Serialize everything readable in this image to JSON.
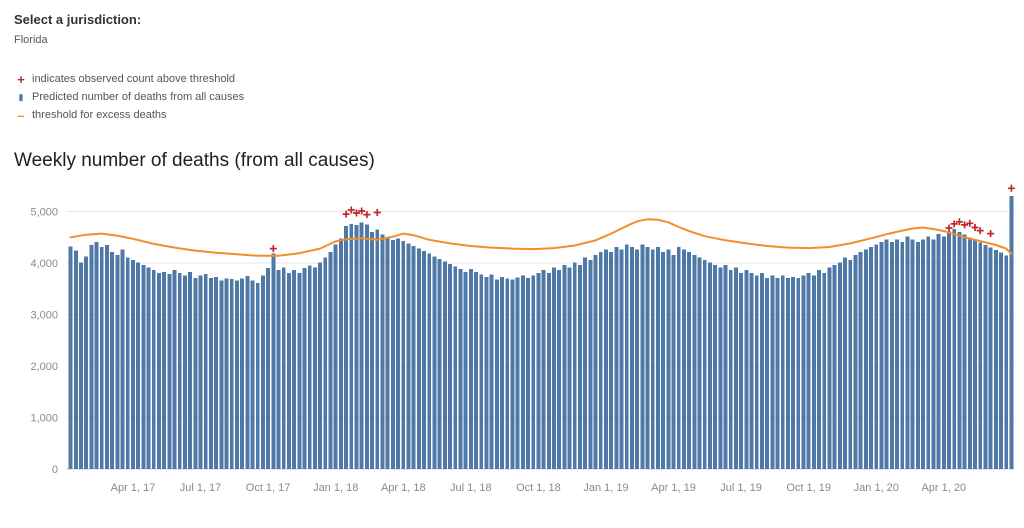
{
  "jurisdiction": {
    "label": "Select a jurisdiction:",
    "value": "Florida"
  },
  "legend": {
    "items": [
      {
        "glyph": "+",
        "color": "#c0282d",
        "text": "indicates observed count above threshold"
      },
      {
        "glyph": "▮",
        "color": "#4e79a7",
        "text": "Predicted number of deaths from all causes"
      },
      {
        "glyph": "–",
        "color": "#f28e2b",
        "text": "threshold for excess deaths"
      }
    ]
  },
  "chart_title": "Weekly number of deaths (from all causes)",
  "chart_data": {
    "type": "bar",
    "title": "Weekly number of deaths (from all causes)",
    "xlabel": "",
    "ylabel": "",
    "x_unit": "week (Jan 2017 - Jun 2020)",
    "ylim": [
      0,
      5500
    ],
    "y_ticks": [
      0,
      1000,
      2000,
      3000,
      4000,
      5000
    ],
    "y_tick_labels": [
      "0",
      "1,000",
      "2,000",
      "3,000",
      "4,000",
      "5,000"
    ],
    "x_tick_positions": [
      12,
      25,
      38,
      51,
      64,
      77,
      90,
      103,
      116,
      129,
      142,
      155,
      168
    ],
    "x_tick_labels": [
      "Apr 1, 17",
      "Jul 1, 17",
      "Oct 1, 17",
      "Jan 1, 18",
      "Apr 1, 18",
      "Jul 1, 18",
      "Oct 1, 18",
      "Jan 1, 19",
      "Apr 1, 19",
      "Jul 1, 19",
      "Oct 1, 19",
      "Jan 1, 20",
      "Apr 1, 20"
    ],
    "series": [
      {
        "name": "Predicted number of deaths from all causes",
        "values": [
          4320,
          4240,
          4010,
          4130,
          4350,
          4410,
          4310,
          4350,
          4210,
          4160,
          4260,
          4110,
          4060,
          4010,
          3960,
          3910,
          3860,
          3810,
          3830,
          3790,
          3860,
          3810,
          3760,
          3830,
          3710,
          3760,
          3790,
          3710,
          3730,
          3660,
          3700,
          3690,
          3660,
          3700,
          3750,
          3660,
          3610,
          3760,
          3900,
          4180,
          3860,
          3910,
          3810,
          3860,
          3810,
          3900,
          3950,
          3910,
          4010,
          4110,
          4210,
          4360,
          4480,
          4720,
          4760,
          4740,
          4790,
          4750,
          4600,
          4650,
          4550,
          4500,
          4450,
          4480,
          4430,
          4380,
          4330,
          4280,
          4230,
          4180,
          4130,
          4080,
          4030,
          3980,
          3930,
          3880,
          3830,
          3880,
          3830,
          3780,
          3730,
          3780,
          3680,
          3730,
          3700,
          3680,
          3720,
          3760,
          3710,
          3760,
          3810,
          3860,
          3810,
          3910,
          3860,
          3960,
          3910,
          4010,
          3960,
          4110,
          4060,
          4160,
          4210,
          4260,
          4210,
          4310,
          4260,
          4360,
          4310,
          4260,
          4360,
          4310,
          4260,
          4310,
          4210,
          4260,
          4160,
          4310,
          4260,
          4210,
          4160,
          4110,
          4060,
          4010,
          3960,
          3910,
          3960,
          3860,
          3910,
          3810,
          3860,
          3810,
          3760,
          3810,
          3710,
          3760,
          3710,
          3760,
          3710,
          3730,
          3710,
          3760,
          3810,
          3760,
          3860,
          3810,
          3910,
          3960,
          4010,
          4110,
          4060,
          4160,
          4210,
          4260,
          4310,
          4360,
          4410,
          4460,
          4410,
          4460,
          4410,
          4510,
          4460,
          4410,
          4460,
          4510,
          4460,
          4560,
          4510,
          4610,
          4660,
          4600,
          4550,
          4500,
          4450,
          4400,
          4350,
          4300,
          4250,
          4200,
          4150,
          5300
        ]
      }
    ],
    "overlay_line": {
      "name": "threshold for excess deaths",
      "points": [
        [
          0,
          4500
        ],
        [
          3,
          4550
        ],
        [
          6,
          4570
        ],
        [
          9,
          4530
        ],
        [
          12,
          4470
        ],
        [
          16,
          4370
        ],
        [
          20,
          4300
        ],
        [
          24,
          4240
        ],
        [
          28,
          4200
        ],
        [
          32,
          4170
        ],
        [
          36,
          4140
        ],
        [
          40,
          4140
        ],
        [
          44,
          4190
        ],
        [
          48,
          4280
        ],
        [
          51,
          4420
        ],
        [
          53,
          4460
        ],
        [
          56,
          4480
        ],
        [
          59,
          4450
        ],
        [
          62,
          4510
        ],
        [
          64,
          4570
        ],
        [
          66,
          4540
        ],
        [
          69,
          4450
        ],
        [
          73,
          4380
        ],
        [
          77,
          4330
        ],
        [
          81,
          4300
        ],
        [
          85,
          4280
        ],
        [
          89,
          4270
        ],
        [
          93,
          4290
        ],
        [
          97,
          4340
        ],
        [
          101,
          4440
        ],
        [
          104,
          4570
        ],
        [
          107,
          4720
        ],
        [
          109,
          4810
        ],
        [
          111,
          4850
        ],
        [
          113,
          4840
        ],
        [
          115,
          4790
        ],
        [
          117,
          4700
        ],
        [
          119,
          4620
        ],
        [
          122,
          4520
        ],
        [
          126,
          4440
        ],
        [
          130,
          4380
        ],
        [
          134,
          4330
        ],
        [
          138,
          4300
        ],
        [
          142,
          4290
        ],
        [
          146,
          4310
        ],
        [
          150,
          4380
        ],
        [
          154,
          4480
        ],
        [
          157,
          4560
        ],
        [
          160,
          4630
        ],
        [
          162,
          4670
        ],
        [
          164,
          4690
        ],
        [
          166,
          4660
        ],
        [
          168,
          4620
        ],
        [
          170,
          4560
        ],
        [
          172,
          4500
        ],
        [
          174,
          4450
        ],
        [
          176,
          4400
        ],
        [
          178,
          4350
        ],
        [
          180,
          4280
        ],
        [
          181,
          4180
        ]
      ]
    },
    "flags": {
      "name": "observed count above threshold",
      "points": [
        [
          39,
          4280
        ],
        [
          53,
          4950
        ],
        [
          54,
          5030
        ],
        [
          55,
          4970
        ],
        [
          56,
          5010
        ],
        [
          57,
          4940
        ],
        [
          59,
          4980
        ],
        [
          169,
          4680
        ],
        [
          170,
          4760
        ],
        [
          171,
          4800
        ],
        [
          172,
          4740
        ],
        [
          173,
          4770
        ],
        [
          174,
          4690
        ],
        [
          175,
          4630
        ],
        [
          177,
          4570
        ],
        [
          181,
          5450
        ]
      ]
    },
    "colors": {
      "bar": "#4e79a7",
      "threshold": "#f28e2b",
      "flag": "#c0282d",
      "grid": "#e7e7e7",
      "baseline": "#cfcfcf",
      "axis_text": "#8a8a8a"
    }
  }
}
